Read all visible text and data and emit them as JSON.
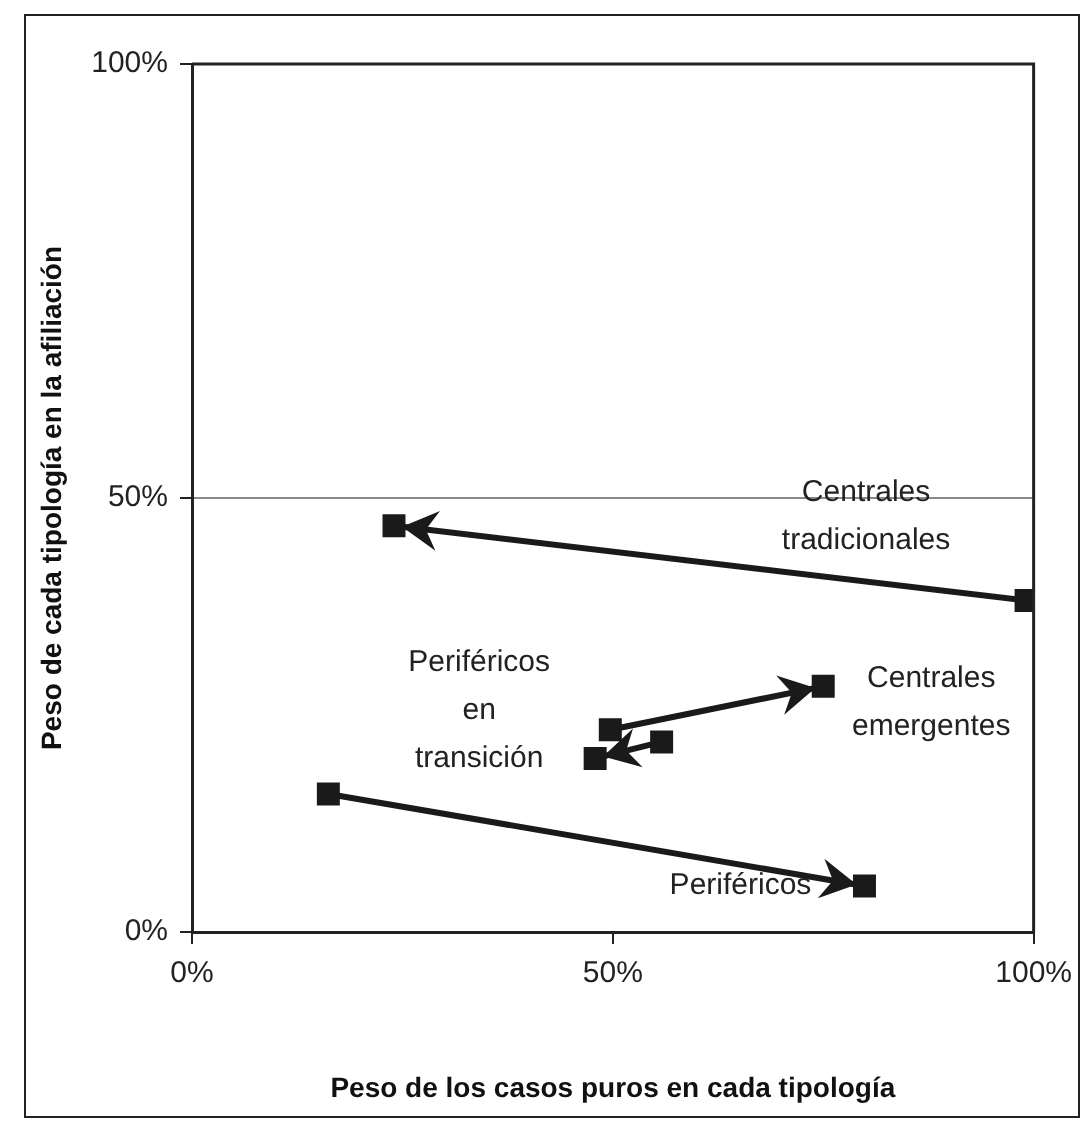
{
  "chart_data": {
    "type": "scatter",
    "xlabel": "Peso de los casos puros en cada tipología",
    "ylabel": "Peso de cada tipología en la afiliación",
    "xlim": [
      0,
      100
    ],
    "ylim": [
      0,
      100
    ],
    "xticks": [
      {
        "value": 0,
        "label": "0%"
      },
      {
        "value": 50,
        "label": "50%"
      },
      {
        "value": 100,
        "label": "100%"
      }
    ],
    "yticks": [
      {
        "value": 0,
        "label": "0%"
      },
      {
        "value": 50,
        "label": "50%"
      },
      {
        "value": 100,
        "label": "100%"
      }
    ],
    "grid": "y",
    "legend": false,
    "marker": "square",
    "line_style": "solid",
    "series": [
      {
        "type": "line",
        "color": "#1a1a1a",
        "x": [
          99.1,
          24.0
        ],
        "values": [
          38.2,
          46.8
        ]
      },
      {
        "type": "line",
        "color": "#1a1a1a",
        "x": [
          49.7,
          75.0
        ],
        "values": [
          23.3,
          28.3
        ]
      },
      {
        "type": "line",
        "color": "#1a1a1a",
        "x": [
          55.8,
          47.9
        ],
        "values": [
          21.9,
          20.0
        ]
      },
      {
        "type": "line",
        "color": "#1a1a1a",
        "x": [
          16.2,
          79.9
        ],
        "values": [
          15.9,
          5.3
        ]
      }
    ],
    "annotations": [
      {
        "text": "Centrales tradicionales",
        "x": 99.1,
        "y": 38.2
      },
      {
        "text": "Centrales emergentes",
        "x": 75.0,
        "y": 28.3
      },
      {
        "text": "Periféricos en transición",
        "x": 47.9,
        "y": 20.0
      },
      {
        "text": "Periféricos",
        "x": 79.9,
        "y": 5.3
      }
    ]
  }
}
